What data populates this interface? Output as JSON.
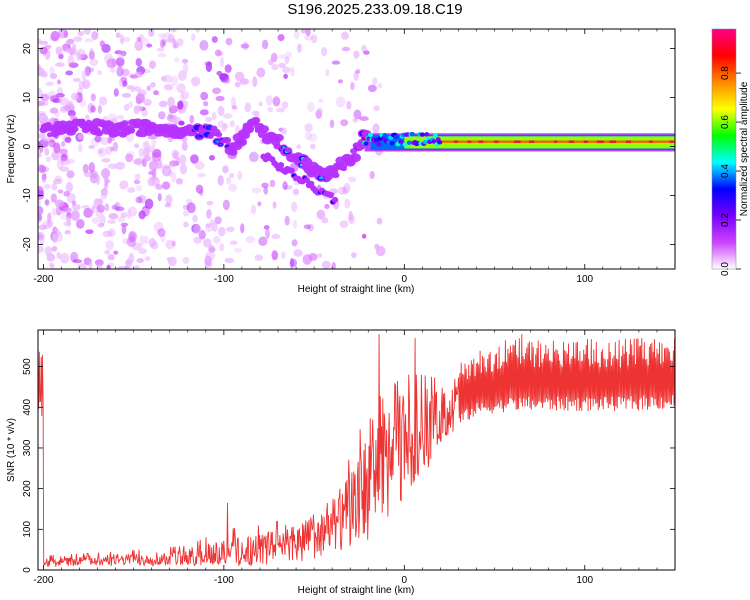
{
  "title": "S196.2025.233.09.18.C19",
  "chart_data": [
    {
      "type": "heatmap",
      "name": "spectrogram",
      "xlabel": "Height of straight line (km)",
      "ylabel": "Frequency (Hz)",
      "xlim": [
        -203,
        150
      ],
      "ylim": [
        -25,
        24
      ],
      "xticks": [
        -200,
        -100,
        0,
        100
      ],
      "yticks": [
        -20,
        -10,
        0,
        10,
        20
      ],
      "colorbar": {
        "label": "Normalized spectral amplitude",
        "range": [
          0,
          0.98
        ],
        "ticks": [
          0.0,
          0.2,
          0.4,
          0.6,
          0.8
        ],
        "tick_labels": [
          "0.0",
          "0.2",
          "0.4",
          "0.6",
          "0.8"
        ],
        "colormap": [
          "#ffffff",
          "#cc44ff",
          "#7700ff",
          "#0000ff",
          "#00ffff",
          "#00ff00",
          "#ffff00",
          "#ff8800",
          "#ff0000",
          "#ff0088"
        ]
      },
      "features": {
        "ridge": [
          {
            "x": -200,
            "f": 3.5,
            "amp": 0.05
          },
          {
            "x": -180,
            "f": 4.0,
            "amp": 0.1
          },
          {
            "x": -160,
            "f": 3.5,
            "amp": 0.12
          },
          {
            "x": -140,
            "f": 4.0,
            "amp": 0.1
          },
          {
            "x": -120,
            "f": 3.5,
            "amp": 0.12
          },
          {
            "x": -105,
            "f": 2.5,
            "amp": 0.25
          },
          {
            "x": -95,
            "f": -1.0,
            "amp": 0.2
          },
          {
            "x": -85,
            "f": 5.0,
            "amp": 0.2
          },
          {
            "x": -70,
            "f": 1.0,
            "amp": 0.25
          },
          {
            "x": -55,
            "f": -4.0,
            "amp": 0.3
          },
          {
            "x": -45,
            "f": -6.5,
            "amp": 0.25
          },
          {
            "x": -35,
            "f": -4.0,
            "amp": 0.3
          },
          {
            "x": -28,
            "f": -2.0,
            "amp": 0.35
          },
          {
            "x": -22,
            "f": 2.0,
            "amp": 0.55
          },
          {
            "x": -10,
            "f": 1.5,
            "amp": 0.65
          },
          {
            "x": 0,
            "f": 1.5,
            "amp": 0.7
          },
          {
            "x": 20,
            "f": 1.0,
            "amp": 0.9
          },
          {
            "x": 60,
            "f": 1.0,
            "amp": 0.95
          },
          {
            "x": 100,
            "f": 1.0,
            "amp": 0.95
          },
          {
            "x": 150,
            "f": 1.0,
            "amp": 0.95
          }
        ]
      }
    },
    {
      "type": "line",
      "name": "snr",
      "xlabel": "Height of straight line (km)",
      "ylabel": "SNR (10 * v/v)",
      "xlim": [
        -203,
        150
      ],
      "ylim": [
        0,
        590
      ],
      "xticks": [
        -200,
        -100,
        0,
        100
      ],
      "yticks": [
        0,
        100,
        200,
        300,
        400,
        500
      ],
      "color": "#ee3333",
      "envelope": [
        {
          "x": -200,
          "low": 10,
          "mean": 20,
          "high": 35
        },
        {
          "x": -160,
          "low": 15,
          "mean": 25,
          "high": 45
        },
        {
          "x": -120,
          "low": 15,
          "mean": 30,
          "high": 60
        },
        {
          "x": -100,
          "low": 20,
          "mean": 45,
          "high": 100
        },
        {
          "x": -80,
          "low": 20,
          "mean": 55,
          "high": 110
        },
        {
          "x": -60,
          "low": 25,
          "mean": 70,
          "high": 130
        },
        {
          "x": -40,
          "low": 40,
          "mean": 100,
          "high": 170
        },
        {
          "x": -30,
          "low": 60,
          "mean": 150,
          "high": 280
        },
        {
          "x": -20,
          "low": 100,
          "mean": 220,
          "high": 400
        },
        {
          "x": -10,
          "low": 120,
          "mean": 280,
          "high": 440
        },
        {
          "x": 0,
          "low": 180,
          "mean": 320,
          "high": 480
        },
        {
          "x": 10,
          "low": 250,
          "mean": 340,
          "high": 480
        },
        {
          "x": 20,
          "low": 320,
          "mean": 380,
          "high": 470
        },
        {
          "x": 40,
          "low": 380,
          "mean": 430,
          "high": 550
        },
        {
          "x": 60,
          "low": 390,
          "mean": 450,
          "high": 570
        },
        {
          "x": 80,
          "low": 390,
          "mean": 450,
          "high": 570
        },
        {
          "x": 100,
          "low": 390,
          "mean": 450,
          "high": 570
        },
        {
          "x": 120,
          "low": 390,
          "mean": 450,
          "high": 570
        },
        {
          "x": 150,
          "low": 395,
          "mean": 460,
          "high": 570
        }
      ],
      "peaks": [
        {
          "x": -98,
          "y": 165
        },
        {
          "x": -14,
          "y": 580
        },
        {
          "x": 6,
          "y": 570
        },
        {
          "x": 65,
          "y": 580
        }
      ]
    }
  ]
}
